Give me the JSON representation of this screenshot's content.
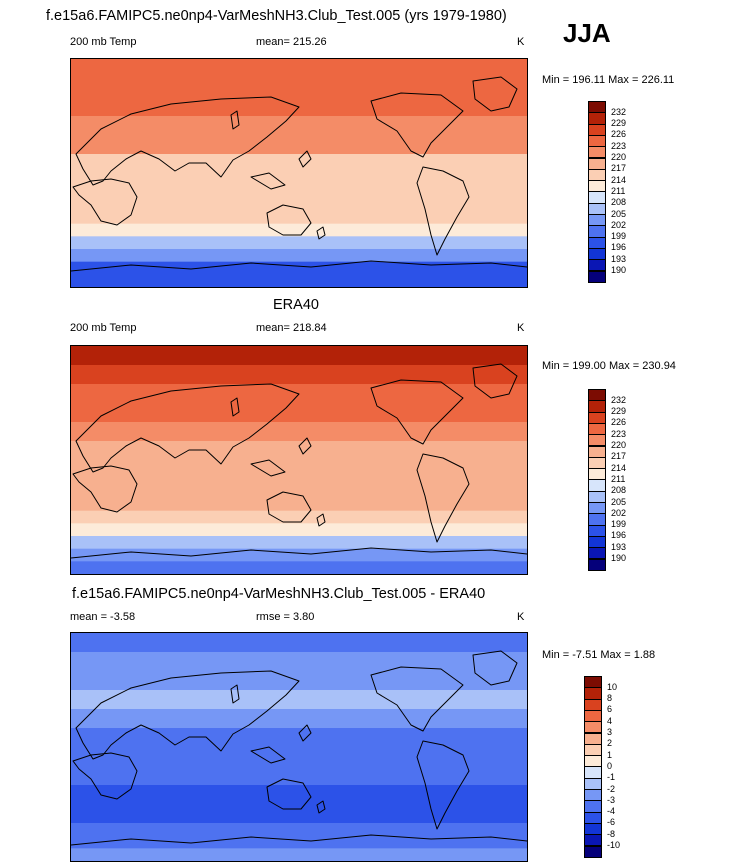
{
  "figure": {
    "main_title": "f.e15a6.FAMIPC5.ne0np4-VarMeshNH3.Club_Test.005 (yrs 1979-1980)",
    "season": "JJA"
  },
  "chart_data": [
    {
      "type": "heatmap",
      "panel": "model",
      "title": "",
      "left_label": "200 mb Temp",
      "center_label": "mean= 215.26",
      "right_label": "K",
      "min_max_label": "Min = 196.11 Max = 226.11",
      "min": 196.11,
      "max": 226.11,
      "mean": 215.26,
      "levels": [
        190,
        193,
        196,
        199,
        202,
        205,
        208,
        211,
        214,
        217,
        220,
        223,
        226,
        229,
        232
      ],
      "level_labels": [
        "190",
        "193",
        "196",
        "199",
        "202",
        "205",
        "208",
        "211",
        "214",
        "217",
        "220",
        "223",
        "226",
        "229",
        "232"
      ],
      "colors": [
        "#05007a",
        "#0a16b4",
        "#1235d6",
        "#2c52e8",
        "#4e72f0",
        "#7697f5",
        "#a9c1f8",
        "#d7e5fb",
        "#fdebd9",
        "#fbcfb4",
        "#f7b08f",
        "#f48c67",
        "#ed6741",
        "#d9421f",
        "#b32208",
        "#7c0c02"
      ],
      "zonal_profile": [
        {
          "lat": 90,
          "value": 225
        },
        {
          "lat": 75,
          "value": 226
        },
        {
          "lat": 60,
          "value": 224
        },
        {
          "lat": 45,
          "value": 222
        },
        {
          "lat": 30,
          "value": 223
        },
        {
          "lat": 15,
          "value": 217
        },
        {
          "lat": 0,
          "value": 216
        },
        {
          "lat": -15,
          "value": 215
        },
        {
          "lat": -30,
          "value": 215
        },
        {
          "lat": -40,
          "value": 213
        },
        {
          "lat": -50,
          "value": 209
        },
        {
          "lat": -60,
          "value": 205
        },
        {
          "lat": -70,
          "value": 200
        },
        {
          "lat": -80,
          "value": 197
        },
        {
          "lat": -90,
          "value": 196
        }
      ]
    },
    {
      "type": "heatmap",
      "panel": "obs",
      "title": "ERA40",
      "left_label": "200 mb Temp",
      "center_label": "mean= 218.84",
      "right_label": "K",
      "min_max_label": "Min = 199.00 Max = 230.94",
      "min": 199.0,
      "max": 230.94,
      "mean": 218.84,
      "levels": [
        190,
        193,
        196,
        199,
        202,
        205,
        208,
        211,
        214,
        217,
        220,
        223,
        226,
        229,
        232
      ],
      "level_labels": [
        "190",
        "193",
        "196",
        "199",
        "202",
        "205",
        "208",
        "211",
        "214",
        "217",
        "220",
        "223",
        "226",
        "229",
        "232"
      ],
      "colors": [
        "#05007a",
        "#0a16b4",
        "#1235d6",
        "#2c52e8",
        "#4e72f0",
        "#7697f5",
        "#a9c1f8",
        "#d7e5fb",
        "#fdebd9",
        "#fbcfb4",
        "#f7b08f",
        "#f48c67",
        "#ed6741",
        "#d9421f",
        "#b32208",
        "#7c0c02"
      ],
      "zonal_profile": [
        {
          "lat": 90,
          "value": 230
        },
        {
          "lat": 75,
          "value": 228
        },
        {
          "lat": 60,
          "value": 226
        },
        {
          "lat": 45,
          "value": 224
        },
        {
          "lat": 30,
          "value": 225
        },
        {
          "lat": 15,
          "value": 220
        },
        {
          "lat": 0,
          "value": 219
        },
        {
          "lat": -15,
          "value": 219
        },
        {
          "lat": -30,
          "value": 219
        },
        {
          "lat": -40,
          "value": 218
        },
        {
          "lat": -50,
          "value": 214
        },
        {
          "lat": -60,
          "value": 209
        },
        {
          "lat": -70,
          "value": 204
        },
        {
          "lat": -80,
          "value": 200
        },
        {
          "lat": -90,
          "value": 199
        }
      ]
    },
    {
      "type": "heatmap",
      "panel": "diff",
      "title": "f.e15a6.FAMIPC5.ne0np4-VarMeshNH3.Club_Test.005 - ERA40",
      "left_label": "mean =  -3.58",
      "center_label": "rmse =   3.80",
      "right_label": "K",
      "min_max_label": "Min =  -7.51 Max =   1.88",
      "min": -7.51,
      "max": 1.88,
      "mean": -3.58,
      "rmse": 3.8,
      "levels": [
        -10,
        -8,
        -6,
        -4,
        -3,
        -2,
        -1,
        0,
        1,
        2,
        3,
        4,
        6,
        8,
        10
      ],
      "level_labels": [
        "-10",
        "-8",
        "-6",
        "-4",
        "-3",
        "-2",
        "-1",
        "0",
        "1",
        "2",
        "3",
        "4",
        "6",
        "8",
        "10"
      ],
      "colors": [
        "#05007a",
        "#0a16b4",
        "#1235d6",
        "#2c52e8",
        "#4e72f0",
        "#7697f5",
        "#a9c1f8",
        "#d7e5fb",
        "#fdebd9",
        "#fbcfb4",
        "#f7b08f",
        "#f48c67",
        "#ed6741",
        "#d9421f",
        "#b32208",
        "#7c0c02"
      ],
      "zonal_profile": [
        {
          "lat": 90,
          "value": -5
        },
        {
          "lat": 75,
          "value": -3
        },
        {
          "lat": 60,
          "value": -2.5
        },
        {
          "lat": 45,
          "value": -2
        },
        {
          "lat": 30,
          "value": -1.5
        },
        {
          "lat": 15,
          "value": -3.5
        },
        {
          "lat": 0,
          "value": -3
        },
        {
          "lat": -15,
          "value": -3.5
        },
        {
          "lat": -30,
          "value": -4.5
        },
        {
          "lat": -40,
          "value": -5
        },
        {
          "lat": -50,
          "value": -5
        },
        {
          "lat": -60,
          "value": -4.5
        },
        {
          "lat": -70,
          "value": -3.5
        },
        {
          "lat": -80,
          "value": -3
        },
        {
          "lat": -90,
          "value": -3
        }
      ]
    }
  ]
}
